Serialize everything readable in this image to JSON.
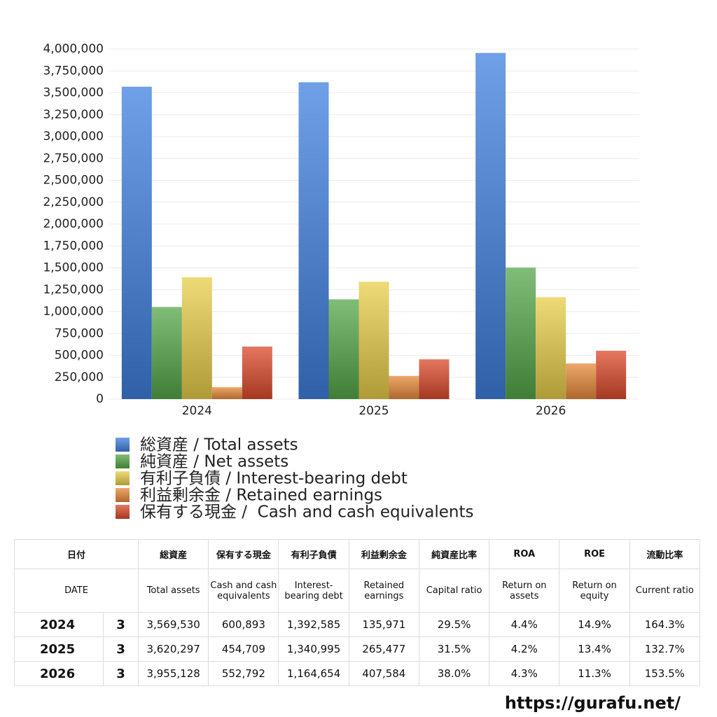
{
  "chart_data": {
    "type": "bar",
    "categories": [
      "2024",
      "2025",
      "2026"
    ],
    "series": [
      {
        "name": "総資産 / Total assets",
        "color": "#3f80e0",
        "values": [
          3569530,
          3620297,
          3955128
        ]
      },
      {
        "name": "純資産 / Net assets",
        "color": "#55a84a",
        "values": [
          1053000,
          1140000,
          1503000
        ]
      },
      {
        "name": "有利子負債 / Interest-bearing debt",
        "color": "#e8cf4a",
        "values": [
          1392585,
          1340995,
          1164654
        ]
      },
      {
        "name": "利益剰余金 / Retained earnings",
        "color": "#e8893a",
        "values": [
          135971,
          265477,
          407584
        ]
      },
      {
        "name": "保有する現金 /  Cash and cash equivalents",
        "color": "#dc4a2c",
        "values": [
          600893,
          454709,
          552792
        ]
      }
    ],
    "ylim": [
      0,
      4000000
    ],
    "yticks": [
      0,
      {
        "value": 250000,
        "label": "250,000"
      },
      {
        "value": 500000,
        "label": "500,000"
      },
      {
        "value": 750000,
        "label": "750,000"
      },
      {
        "value": 1000000,
        "label": "1,000,000"
      },
      {
        "value": 1250000,
        "label": "1,250,000"
      },
      {
        "value": 1500000,
        "label": "1,500,000"
      },
      {
        "value": 1750000,
        "label": "1,750,000"
      },
      {
        "value": 2000000,
        "label": "2,000,000"
      },
      {
        "value": 2250000,
        "label": "2,250,000"
      },
      {
        "value": 2500000,
        "label": "2,500,000"
      },
      {
        "value": 2750000,
        "label": "2,750,000"
      },
      {
        "value": 3000000,
        "label": "3,000,000"
      },
      {
        "value": 3250000,
        "label": "3,250,000"
      },
      {
        "value": 3500000,
        "label": "3,500,000"
      },
      {
        "value": 3750000,
        "label": "3,750,000"
      },
      {
        "value": 4000000,
        "label": "4,000,000"
      }
    ],
    "grid": true
  },
  "table": {
    "header_ja": [
      "日付",
      "総資産",
      "保有する現金",
      "有利子負債",
      "利益剰余金",
      "純資産比率",
      "ROA",
      "ROE",
      "流動比率"
    ],
    "header_en": [
      "DATE",
      "Total assets",
      "Cash and cash equivalents",
      "Interest-bearing debt",
      "Retained earnings",
      "Capital ratio",
      "Return on assets",
      "Return on equity",
      "Current ratio"
    ],
    "rows": [
      [
        "2024",
        "3",
        "3,569,530",
        "600,893",
        "1,392,585",
        "135,971",
        "29.5%",
        "4.4%",
        "14.9%",
        "164.3%"
      ],
      [
        "2025",
        "3",
        "3,620,297",
        "454,709",
        "1,340,995",
        "265,477",
        "31.5%",
        "4.2%",
        "13.4%",
        "132.7%"
      ],
      [
        "2026",
        "3",
        "3,955,128",
        "552,792",
        "1,164,654",
        "407,584",
        "38.0%",
        "4.3%",
        "11.3%",
        "153.5%"
      ]
    ]
  },
  "footer": "https://gurafu.net/"
}
